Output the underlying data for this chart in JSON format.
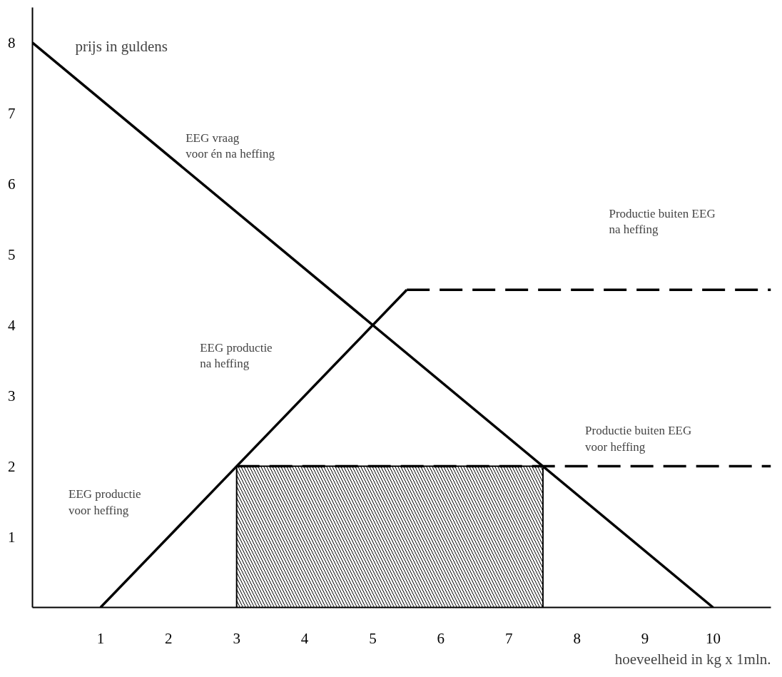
{
  "chart_data": {
    "type": "line",
    "ylabel": "prijs in guldens",
    "xlabel": "hoeveelheid in kg x 1mln.",
    "xlim": [
      0,
      10.85
    ],
    "ylim": [
      0,
      8.5
    ],
    "xticks": [
      1,
      2,
      3,
      4,
      5,
      6,
      7,
      8,
      9,
      10
    ],
    "yticks": [
      1,
      2,
      3,
      4,
      5,
      6,
      7,
      8
    ],
    "grid": false,
    "marker": "none",
    "line_style": "solid",
    "series": [
      {
        "type": "area",
        "color": "#000000",
        "x": [
          3,
          7.5
        ],
        "values": [
          2,
          2
        ]
      },
      {
        "color": "#000000",
        "x": [
          0,
          10
        ],
        "values": [
          8,
          0
        ]
      },
      {
        "color": "#000000",
        "x": [
          1,
          3,
          5.5
        ],
        "values": [
          0,
          2,
          4.5
        ]
      },
      {
        "color": "#000000",
        "x": [
          5.5,
          10.85
        ],
        "values": [
          4.5,
          4.5
        ],
        "line_style": "dashed"
      },
      {
        "color": "#000000",
        "x": [
          3,
          10.85
        ],
        "values": [
          2,
          2
        ],
        "line_style": "dashed"
      }
    ],
    "annotations": [
      "EEG vraag\nvoor én na heffing",
      "EEG productie\nna heffing",
      "EEG productie\nvoor heffing",
      "Productie buiten EEG\nna heffing",
      "Productie buiten EEG\nvoor heffing"
    ]
  }
}
